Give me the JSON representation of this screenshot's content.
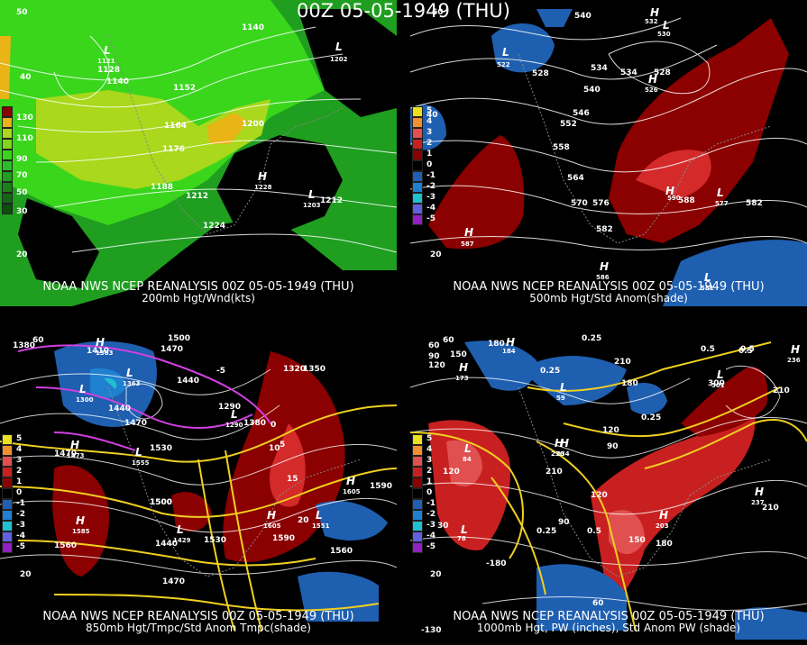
{
  "title": "00Z 05-05-1949 (THU)",
  "panels": [
    {
      "caption_line1": "NOAA NWS NCEP REANALYSIS 00Z 05-05-1949 (THU)",
      "caption_line2": "200mb Hgt/Wnd(kts)",
      "colorbar_ticks": [
        "130",
        "110",
        "90",
        "70",
        "50",
        "30"
      ],
      "contour_labels": [
        "1140",
        "1128",
        "1140",
        "1152",
        "1164",
        "1176",
        "1188",
        "1200",
        "1212",
        "1224",
        "1212"
      ],
      "pressure_centers": [
        {
          "type": "L",
          "value": "1121"
        },
        {
          "type": "H",
          "value": "1228"
        },
        {
          "type": "L",
          "value": "1203"
        },
        {
          "type": "L",
          "value": "1202"
        }
      ],
      "lat_labels": [
        "20",
        "40",
        "50"
      ],
      "colors": {
        "wind_low": "#1f9e1f",
        "wind_mid": "#39d61c",
        "wind_high": "#a9d81c",
        "wind_max": "#e8b416"
      }
    },
    {
      "caption_line1": "NOAA NWS NCEP REANALYSIS 00Z 05-05-1949 (THU)",
      "caption_line2": "500mb Hgt/Std Anom(shade)",
      "colorbar_ticks": [
        "5",
        "4",
        "3",
        "2",
        "1",
        "0",
        "-1",
        "-2",
        "-3",
        "-4",
        "-5"
      ],
      "contour_labels": [
        "540",
        "528",
        "534",
        "534",
        "528",
        "540",
        "546",
        "552",
        "558",
        "564",
        "570",
        "576",
        "582",
        "588",
        "582"
      ],
      "pressure_centers": [
        {
          "type": "L",
          "value": "522"
        },
        {
          "type": "H",
          "value": "532"
        },
        {
          "type": "L",
          "value": "530"
        },
        {
          "type": "H",
          "value": "526"
        },
        {
          "type": "H",
          "value": "587"
        },
        {
          "type": "H",
          "value": "590"
        },
        {
          "type": "L",
          "value": "577"
        },
        {
          "type": "H",
          "value": "586"
        },
        {
          "type": "L",
          "value": "581"
        }
      ],
      "lat_labels": [
        "20",
        "40",
        "60"
      ],
      "colors": {
        "pos": "#8b0000",
        "pos_strong": "#d42a2a",
        "neg": "#1f5fb0"
      }
    },
    {
      "caption_line1": "NOAA NWS NCEP REANALYSIS 00Z 05-05-1949 (THU)",
      "caption_line2": "850mb Hgt/Tmpc/Std Anom Tmpc(shade)",
      "colorbar_ticks": [
        "5",
        "4",
        "3",
        "2",
        "1",
        "0",
        "-1",
        "-2",
        "-3",
        "-4",
        "-5"
      ],
      "contour_labels": [
        "1380",
        "1410",
        "1500",
        "1470",
        "1440",
        "1440",
        "1470",
        "1530",
        "1500",
        "1470",
        "1320",
        "1350",
        "1290",
        "1380",
        "1500",
        "1560",
        "1530",
        "1440",
        "1470",
        "1590",
        "1560",
        "1590",
        "0",
        "5",
        "10",
        "15",
        "20",
        "-5"
      ],
      "pressure_centers": [
        {
          "type": "H",
          "value": "1363"
        },
        {
          "type": "L",
          "value": "1300"
        },
        {
          "type": "H",
          "value": "1473"
        },
        {
          "type": "L",
          "value": "1363"
        },
        {
          "type": "L",
          "value": "1555"
        },
        {
          "type": "H",
          "value": "1585"
        },
        {
          "type": "L",
          "value": "1429"
        },
        {
          "type": "H",
          "value": "1605"
        },
        {
          "type": "L",
          "value": "1551"
        },
        {
          "type": "H",
          "value": "1605"
        },
        {
          "type": "L",
          "value": "1290"
        }
      ],
      "lat_labels": [
        "20",
        "60"
      ],
      "colors": {
        "pos": "#8b0000",
        "neg": "#1f5fb0",
        "temp": "#f0d020",
        "cold": "#d040e0"
      }
    },
    {
      "caption_line1": "NOAA NWS NCEP REANALYSIS 00Z 05-05-1949 (THU)",
      "caption_line2": "1000mb Hgt, PW (inches), Std Anom PW (shade)",
      "colorbar_ticks": [
        "5",
        "4",
        "3",
        "2",
        "1",
        "0",
        "-1",
        "-2",
        "-3",
        "-4",
        "-5"
      ],
      "contour_labels": [
        "60",
        "150",
        "180",
        "120",
        "90",
        "0.25",
        "210",
        "180",
        "0.5",
        "0.25",
        "300",
        "0.5",
        "210",
        "120",
        "90",
        "120",
        "210",
        "30",
        "0.25",
        "0.5",
        "120",
        "150",
        "180",
        "210",
        "-180",
        "60",
        "0.5",
        "90",
        "0.25"
      ],
      "pressure_centers": [
        {
          "type": "H",
          "value": "184"
        },
        {
          "type": "H",
          "value": "173"
        },
        {
          "type": "L",
          "value": "84"
        },
        {
          "type": "H",
          "value": "236"
        },
        {
          "type": "H",
          "value": "237"
        },
        {
          "type": "H",
          "value": "203"
        },
        {
          "type": "L",
          "value": "301"
        },
        {
          "type": "H",
          "value": "236"
        },
        {
          "type": "L",
          "value": "78"
        },
        {
          "type": "L",
          "value": "59"
        },
        {
          "type": "H",
          "value": "234"
        }
      ],
      "lat_labels": [
        "20",
        "60",
        "-130"
      ],
      "colors": {
        "pos": "#c82020",
        "neg": "#1f5fb0",
        "pw": "#f0d020"
      }
    }
  ]
}
